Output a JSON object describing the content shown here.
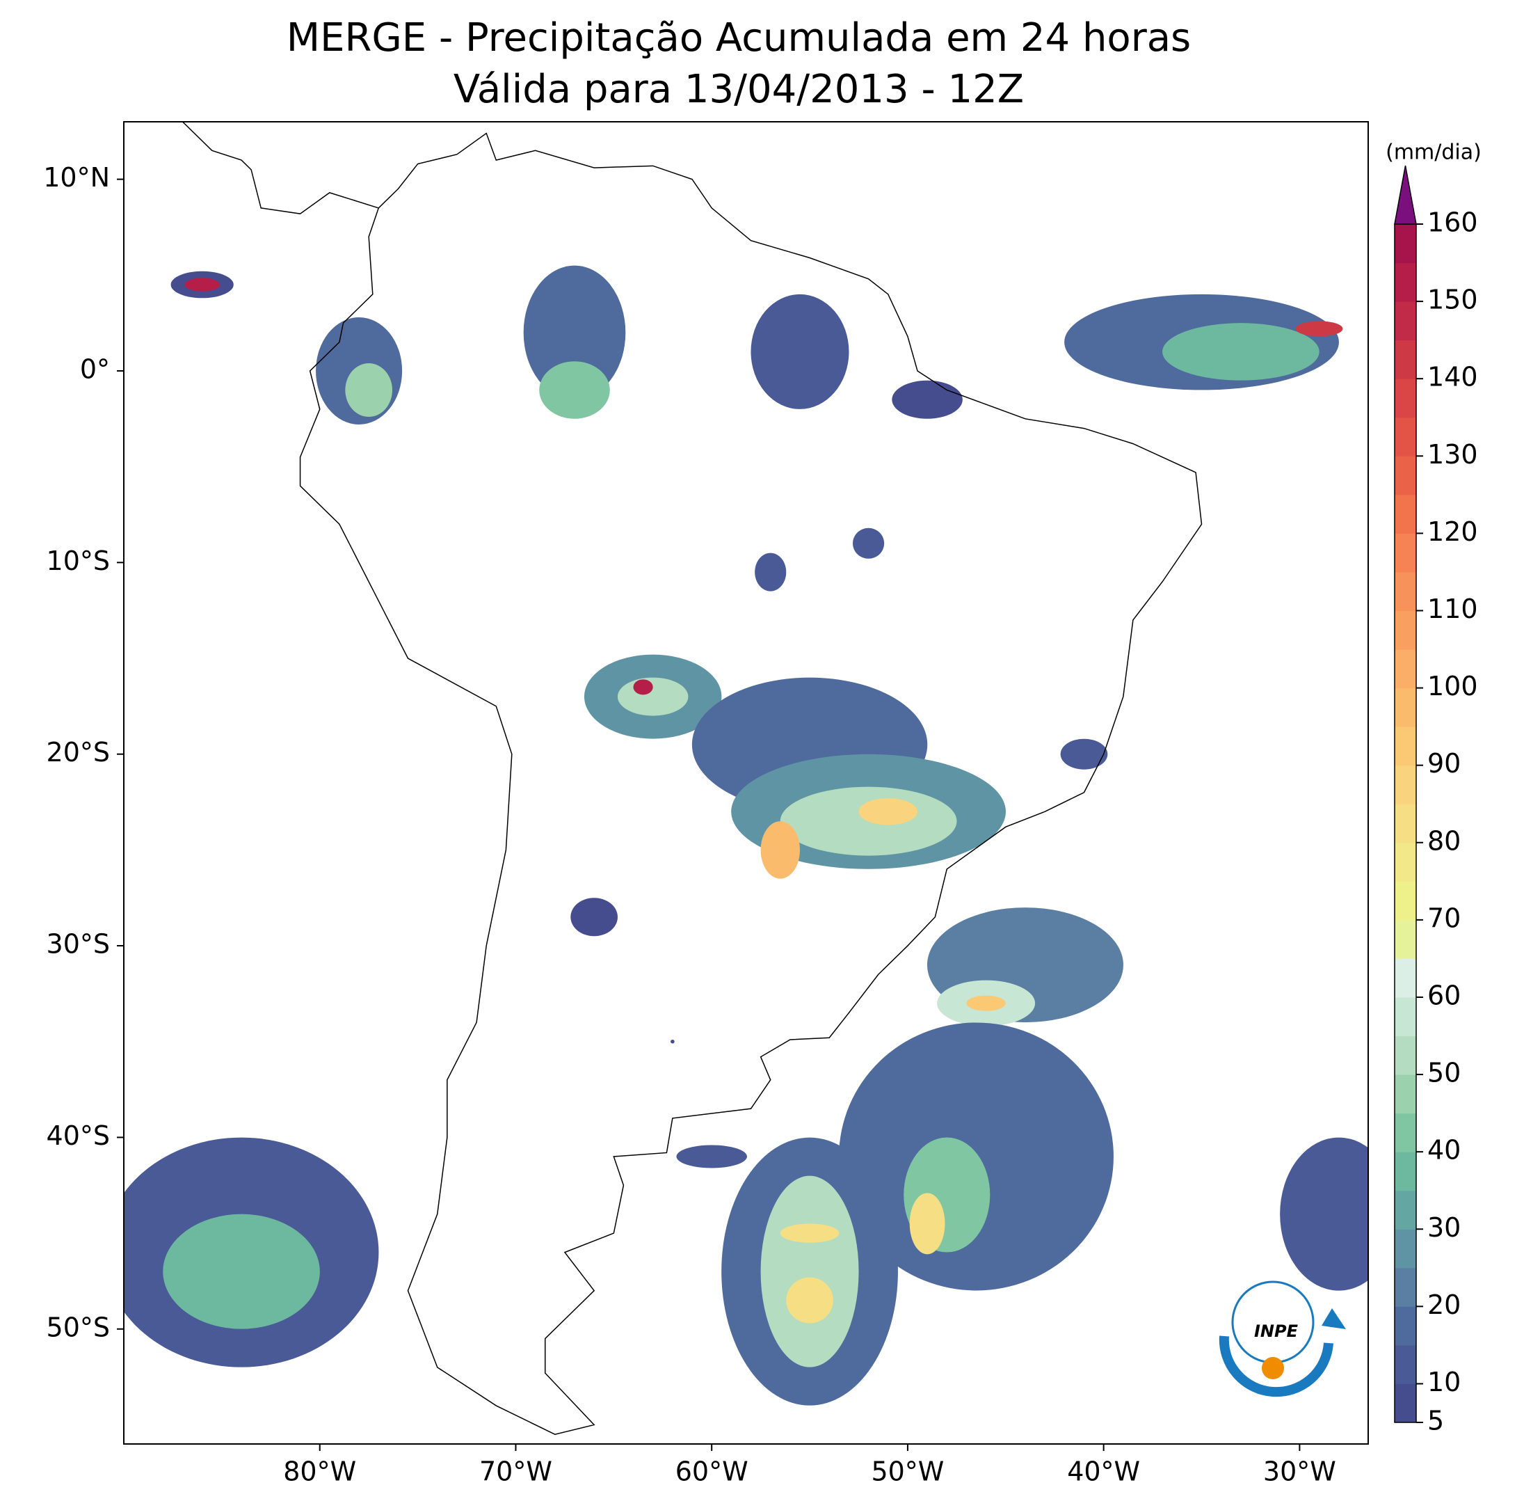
{
  "title": "MERGE - Precipitação Acumulada em 24 horas",
  "subtitle": "Válida para 13/04/2013 - 12Z",
  "map": {
    "xlim": [
      -90,
      -26.5
    ],
    "ylim": [
      -56,
      13
    ],
    "xticks": [
      {
        "value": -80,
        "label": "80°W"
      },
      {
        "value": -70,
        "label": "70°W"
      },
      {
        "value": -60,
        "label": "60°W"
      },
      {
        "value": -50,
        "label": "50°W"
      },
      {
        "value": -40,
        "label": "40°W"
      },
      {
        "value": -30,
        "label": "30°W"
      }
    ],
    "yticks": [
      {
        "value": 10,
        "label": "10°N"
      },
      {
        "value": 0,
        "label": "0°"
      },
      {
        "value": -10,
        "label": "10°S"
      },
      {
        "value": -20,
        "label": "20°S"
      },
      {
        "value": -30,
        "label": "30°S"
      },
      {
        "value": -40,
        "label": "40°S"
      },
      {
        "value": -50,
        "label": "50°S"
      }
    ]
  },
  "colorbar": {
    "label": "(mm/dia)",
    "lim": [
      5,
      160
    ],
    "ticks": [
      5,
      10,
      20,
      30,
      40,
      50,
      60,
      70,
      80,
      90,
      100,
      110,
      120,
      130,
      140,
      150,
      160
    ],
    "colors": [
      "#454d8f",
      "#4a5a96",
      "#4f6a9c",
      "#5b7ea3",
      "#5f94a4",
      "#64a6a2",
      "#6cb9a0",
      "#80c6a2",
      "#9bd1ad",
      "#b3dcc0",
      "#c8e6d4",
      "#dbefe7",
      "#e6f29a",
      "#eef08a",
      "#f2e889",
      "#f6de84",
      "#f9d37d",
      "#fbc874",
      "#fbbb6d",
      "#fbae67",
      "#f9a060",
      "#f7925a",
      "#f58353",
      "#f1744d",
      "#ea6348",
      "#e35446",
      "#d94645",
      "#ce3946",
      "#c22b47",
      "#b51e49",
      "#a7134b"
    ],
    "over_color": "#7b0f7e"
  },
  "logo": "INPE"
}
